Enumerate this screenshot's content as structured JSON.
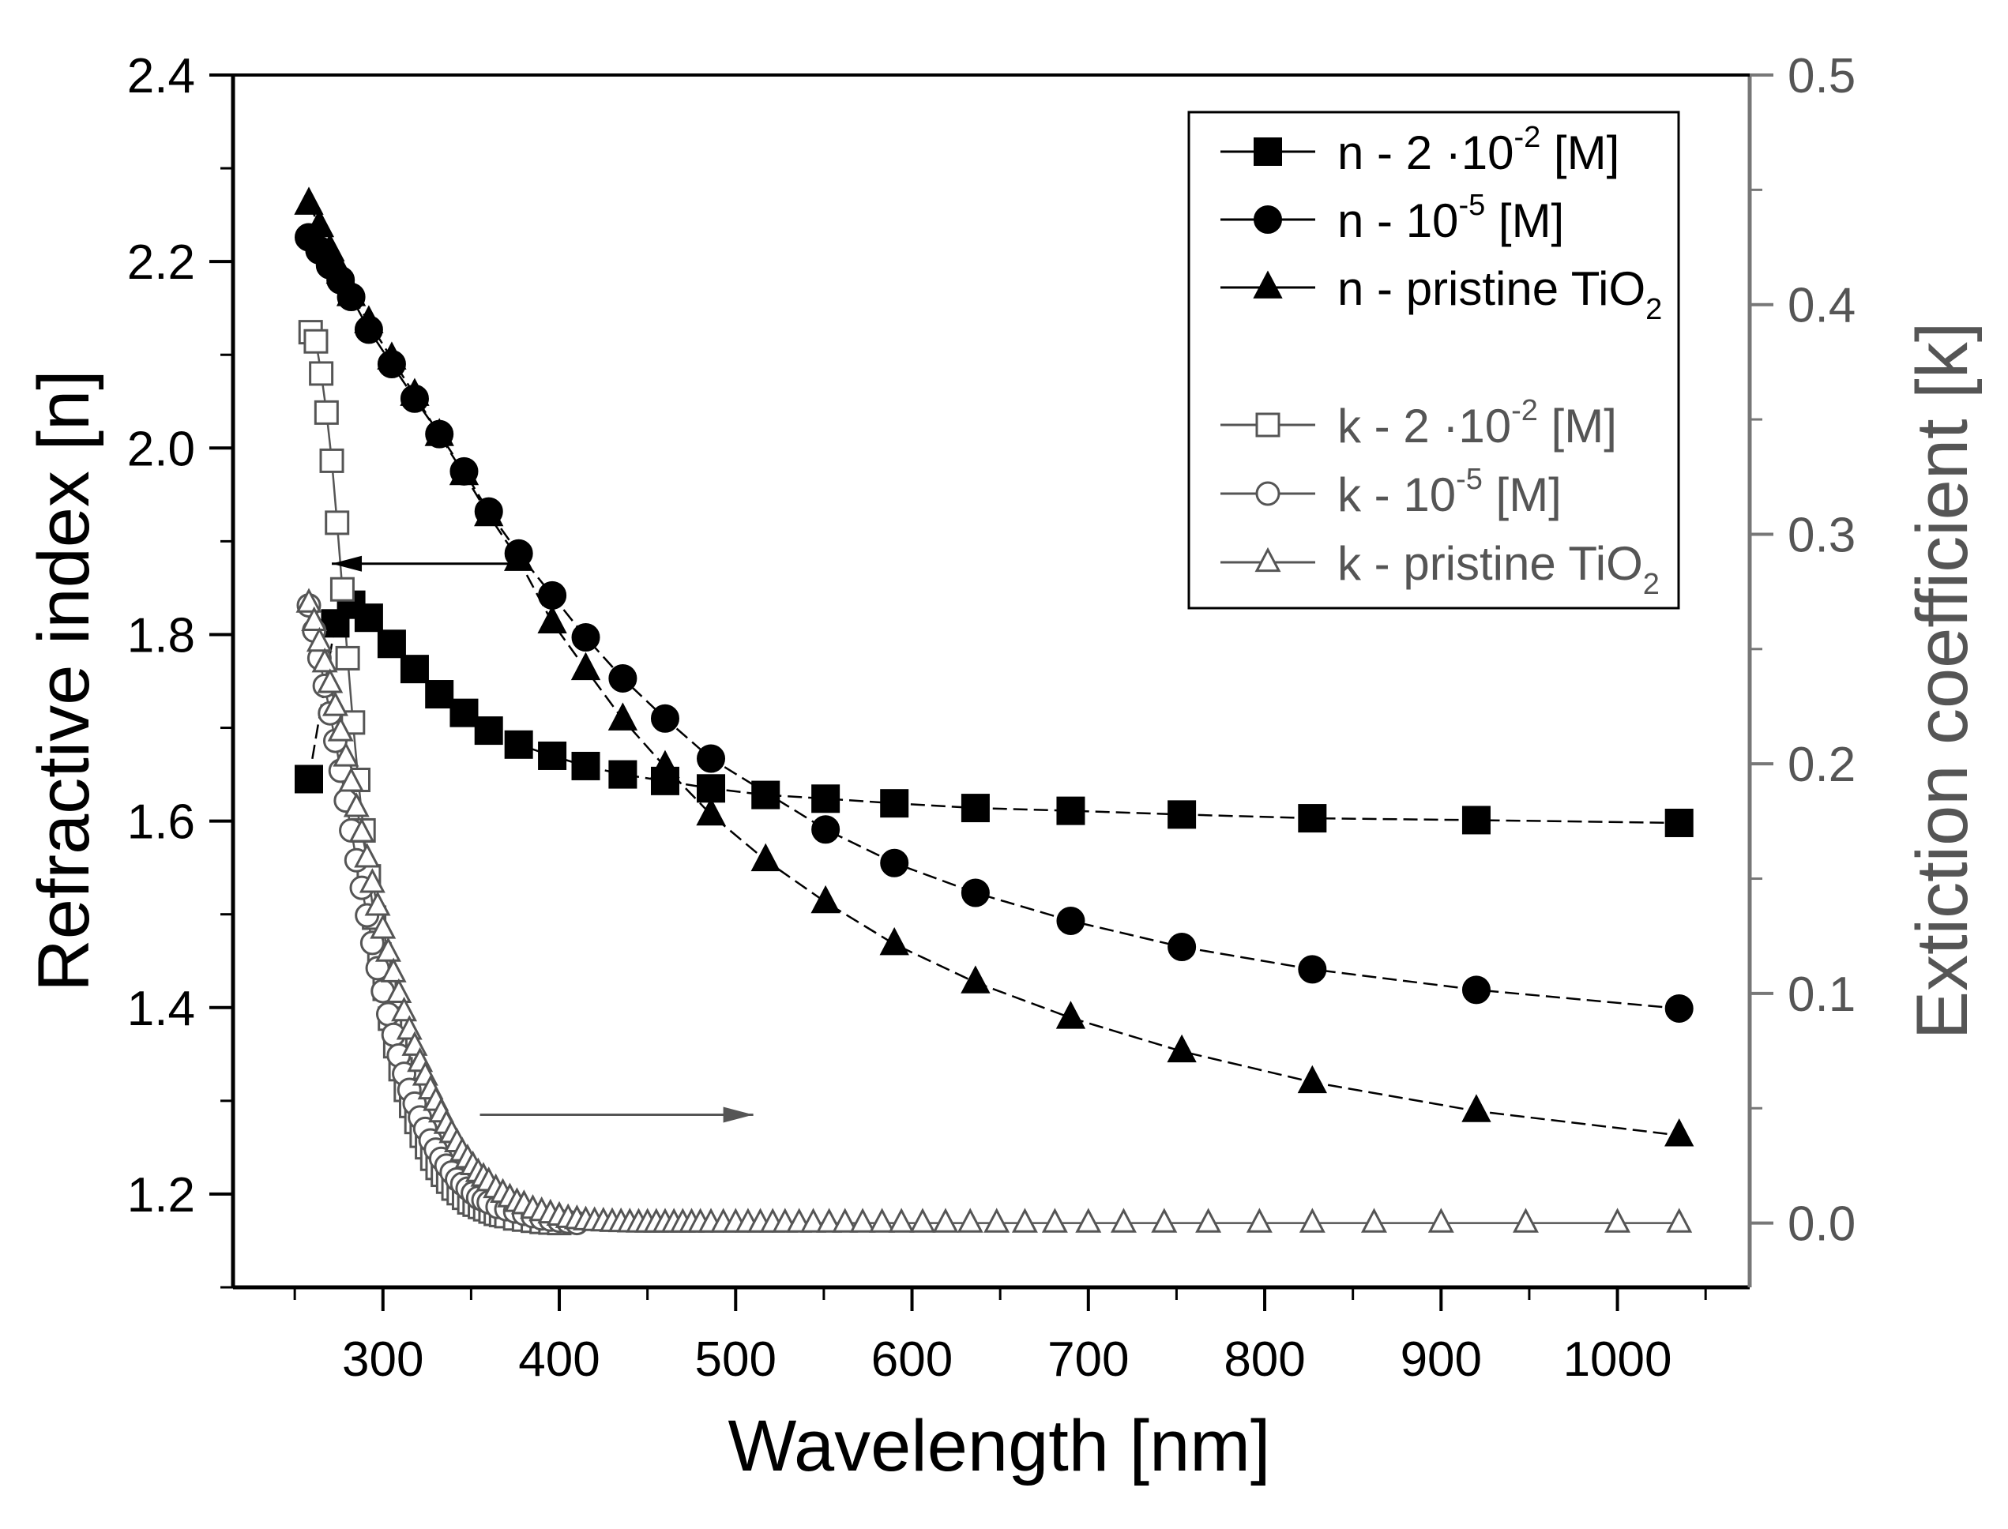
{
  "chart_data": {
    "type": "line",
    "title": "",
    "xlabel": "Wavelength [nm]",
    "ylabel_left": "Refractive index [n]",
    "ylabel_right": "Extiction coefficient [k]",
    "xlim": [
      215,
      1075
    ],
    "ylim_left": [
      1.1,
      2.4
    ],
    "ylim_right": [
      -0.028,
      0.5
    ],
    "x_ticks": [
      300,
      400,
      500,
      600,
      700,
      800,
      900,
      1000
    ],
    "y_left_ticks": [
      "1.2",
      "1.4",
      "1.6",
      "1.8",
      "2.0",
      "2.2",
      "2.4"
    ],
    "y_right_ticks": [
      "0.0",
      "0.1",
      "0.2",
      "0.3",
      "0.4",
      "0.5"
    ],
    "legend_position": "top-right",
    "legend": [
      {
        "id": "n1",
        "prefix": "n - 2 ·10",
        "sup": "-2",
        "suffix": " [M]",
        "marker": "square",
        "filled": true
      },
      {
        "id": "n2",
        "prefix": "n - 10",
        "sup": "-5",
        "suffix": " [M]",
        "marker": "circle",
        "filled": true
      },
      {
        "id": "n3",
        "prefix": "n - pristine TiO",
        "sub": "2",
        "suffix": "",
        "marker": "triangle",
        "filled": true
      },
      {
        "id": "k1",
        "prefix": "k - 2 ·10",
        "sup": "-2",
        "suffix": " [M]",
        "marker": "square",
        "filled": false
      },
      {
        "id": "k2",
        "prefix": "k - 10",
        "sup": "-5",
        "suffix": " [M]",
        "marker": "circle",
        "filled": false
      },
      {
        "id": "k3",
        "prefix": "k - pristine TiO",
        "sub": "2",
        "suffix": "",
        "marker": "triangle",
        "filled": false
      }
    ],
    "series": [
      {
        "name": "n - 2·10^-2 [M]",
        "axis": "left",
        "marker": "square",
        "filled": true,
        "x": [
          258,
          273,
          282,
          292,
          305,
          318,
          332,
          346,
          360,
          377,
          396,
          415,
          436,
          460,
          486,
          517,
          551,
          590,
          636,
          690,
          753,
          827,
          920,
          1035
        ],
        "y": [
          1.645,
          1.812,
          1.832,
          1.818,
          1.79,
          1.763,
          1.736,
          1.716,
          1.697,
          1.682,
          1.67,
          1.659,
          1.65,
          1.643,
          1.635,
          1.628,
          1.624,
          1.619,
          1.614,
          1.611,
          1.607,
          1.603,
          1.601,
          1.598
        ]
      },
      {
        "name": "n - 10^-5 [M]",
        "axis": "left",
        "marker": "circle",
        "filled": true,
        "x": [
          258,
          264,
          270,
          276,
          282,
          292,
          305,
          318,
          332,
          346,
          360,
          377,
          396,
          415,
          436,
          460,
          486,
          551,
          590,
          636,
          690,
          753,
          827,
          920,
          1035
        ],
        "y": [
          2.226,
          2.212,
          2.196,
          2.18,
          2.162,
          2.127,
          2.09,
          2.053,
          2.015,
          1.975,
          1.932,
          1.887,
          1.842,
          1.797,
          1.753,
          1.71,
          1.667,
          1.591,
          1.555,
          1.523,
          1.493,
          1.465,
          1.441,
          1.419,
          1.399
        ]
      },
      {
        "name": "n - pristine TiO2",
        "axis": "left",
        "marker": "triangle",
        "filled": true,
        "x": [
          258,
          264,
          270,
          276,
          282,
          292,
          305,
          318,
          332,
          346,
          360,
          377,
          396,
          415,
          436,
          460,
          486,
          517,
          551,
          590,
          636,
          690,
          753,
          827,
          920,
          1035
        ],
        "y": [
          2.262,
          2.238,
          2.212,
          2.188,
          2.164,
          2.135,
          2.096,
          2.057,
          2.014,
          1.972,
          1.928,
          1.88,
          1.813,
          1.763,
          1.709,
          1.658,
          1.607,
          1.558,
          1.513,
          1.468,
          1.427,
          1.389,
          1.353,
          1.32,
          1.289,
          1.263
        ]
      },
      {
        "name": "k - 2·10^-2 [M]",
        "axis": "right",
        "marker": "square",
        "filled": false,
        "x": [
          259,
          262,
          265,
          268,
          271,
          274,
          277,
          280,
          283,
          286,
          289,
          292,
          295,
          298,
          301,
          304,
          307,
          310,
          313,
          316,
          319,
          322,
          325,
          328,
          331,
          334,
          337,
          340,
          343,
          346,
          349,
          352,
          355,
          358,
          361,
          364,
          367,
          370,
          375,
          380,
          385,
          390,
          395,
          400
        ],
        "y": [
          0.388,
          0.384,
          0.37,
          0.353,
          0.332,
          0.305,
          0.276,
          0.246,
          0.218,
          0.193,
          0.171,
          0.151,
          0.133,
          0.117,
          0.102,
          0.089,
          0.077,
          0.067,
          0.058,
          0.051,
          0.044,
          0.038,
          0.033,
          0.028,
          0.024,
          0.021,
          0.018,
          0.015,
          0.013,
          0.011,
          0.009,
          0.008,
          0.007,
          0.006,
          0.005,
          0.004,
          0.0035,
          0.003,
          0.002,
          0.0015,
          0.001,
          0.0005,
          0.0002,
          0.0
        ]
      },
      {
        "name": "k - 10^-5 [M]",
        "axis": "right",
        "marker": "circle",
        "filled": false,
        "x": [
          258,
          261,
          264,
          267,
          270,
          273,
          276,
          279,
          282,
          285,
          288,
          291,
          294,
          297,
          300,
          303,
          306,
          309,
          312,
          315,
          318,
          321,
          324,
          327,
          330,
          333,
          336,
          339,
          342,
          345,
          348,
          351,
          354,
          357,
          360,
          365,
          370,
          375,
          380,
          385,
          390,
          395,
          400,
          405,
          410
        ],
        "y": [
          0.269,
          0.258,
          0.246,
          0.234,
          0.222,
          0.21,
          0.197,
          0.184,
          0.171,
          0.158,
          0.146,
          0.134,
          0.122,
          0.111,
          0.101,
          0.091,
          0.082,
          0.073,
          0.065,
          0.058,
          0.052,
          0.046,
          0.041,
          0.036,
          0.032,
          0.028,
          0.025,
          0.022,
          0.019,
          0.017,
          0.015,
          0.013,
          0.011,
          0.01,
          0.009,
          0.007,
          0.006,
          0.005,
          0.004,
          0.003,
          0.002,
          0.0015,
          0.001,
          0.0005,
          0.0
        ]
      },
      {
        "name": "k - pristine TiO2",
        "axis": "right",
        "marker": "triangle",
        "filled": false,
        "x": [
          258,
          261,
          264,
          267,
          270,
          273,
          276,
          279,
          282,
          285,
          288,
          291,
          294,
          297,
          300,
          303,
          306,
          309,
          312,
          315,
          318,
          321,
          324,
          327,
          330,
          333,
          336,
          339,
          342,
          345,
          348,
          351,
          354,
          357,
          360,
          364,
          368,
          372,
          376,
          380,
          385,
          390,
          395,
          400,
          405,
          410,
          415,
          420,
          425,
          430,
          435,
          440,
          445,
          450,
          455,
          460,
          465,
          470,
          475,
          480,
          486,
          493,
          500,
          507,
          514,
          521,
          528,
          536,
          544,
          553,
          562,
          572,
          583,
          594,
          606,
          619,
          633,
          648,
          664,
          681,
          700,
          720,
          743,
          768,
          797,
          827,
          862,
          900,
          948,
          1000,
          1035
        ],
        "y": [
          0.27,
          0.262,
          0.253,
          0.244,
          0.235,
          0.225,
          0.214,
          0.203,
          0.192,
          0.181,
          0.17,
          0.159,
          0.148,
          0.138,
          0.128,
          0.118,
          0.109,
          0.1,
          0.092,
          0.084,
          0.077,
          0.07,
          0.064,
          0.058,
          0.053,
          0.048,
          0.043,
          0.039,
          0.035,
          0.031,
          0.028,
          0.025,
          0.022,
          0.02,
          0.018,
          0.015,
          0.013,
          0.011,
          0.009,
          0.008,
          0.006,
          0.005,
          0.004,
          0.003,
          0.002,
          0.0015,
          0.001,
          0.0007,
          0.0005,
          0.0003,
          0.0002,
          0.0001,
          0.0,
          0.0,
          0.0,
          0.0,
          0.0,
          0.0,
          0.0,
          0.0,
          0.0,
          0.0,
          0.0,
          0.0,
          0.0,
          0.0,
          0.0,
          0.0,
          0.0,
          0.0,
          0.0,
          0.0,
          0.0,
          0.0,
          0.0,
          0.0,
          0.0,
          0.0,
          0.0,
          0.0,
          0.0,
          0.0,
          0.0,
          0.0,
          0.0,
          0.0,
          0.0,
          0.0,
          0.0,
          0.0,
          0.0
        ]
      }
    ],
    "annotations": [
      {
        "name": "arrow-to-left-axis",
        "from": [
          382,
          1.876
        ],
        "to": [
          271,
          1.876
        ],
        "axis": "left"
      },
      {
        "name": "arrow-to-right-axis",
        "from": [
          355,
          1.285
        ],
        "to": [
          510,
          1.285
        ],
        "axis": "left"
      }
    ]
  }
}
